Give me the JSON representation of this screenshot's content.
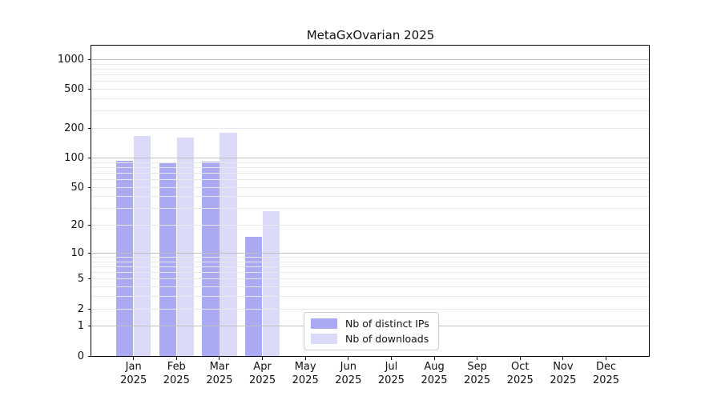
{
  "chart_data": {
    "type": "bar",
    "title": "MetaGxOvarian 2025",
    "categories": [
      "Jan 2025",
      "Feb 2025",
      "Mar 2025",
      "Apr 2025",
      "May 2025",
      "Jun 2025",
      "Jul 2025",
      "Aug 2025",
      "Sep 2025",
      "Oct 2025",
      "Nov 2025",
      "Dec 2025"
    ],
    "series": [
      {
        "name": "Nb of distinct IPs",
        "color": "#a9a9f4",
        "values": [
          93,
          90,
          91,
          15,
          null,
          null,
          null,
          null,
          null,
          null,
          null,
          null
        ]
      },
      {
        "name": "Nb of downloads",
        "color": "#dbdbf9",
        "values": [
          167,
          160,
          181,
          28,
          null,
          null,
          null,
          null,
          null,
          null,
          null,
          null
        ]
      }
    ],
    "y_scale": "log1p",
    "y_ticks": [
      0,
      1,
      2,
      5,
      10,
      20,
      50,
      100,
      200,
      500,
      1000
    ],
    "ylim": [
      0,
      1380
    ],
    "grid": "horizontal-only",
    "legend_position": "inside-bottom-center",
    "colors": {
      "bar_distinct_ips": "#a9a9f4",
      "bar_downloads": "#dbdbf9",
      "grid_minor": "#e8e8e8",
      "grid_major": "#c0c0c0",
      "axis_frame": "#000000",
      "text": "#111111",
      "background": "#ffffff",
      "legend_border": "#cccccc"
    }
  }
}
